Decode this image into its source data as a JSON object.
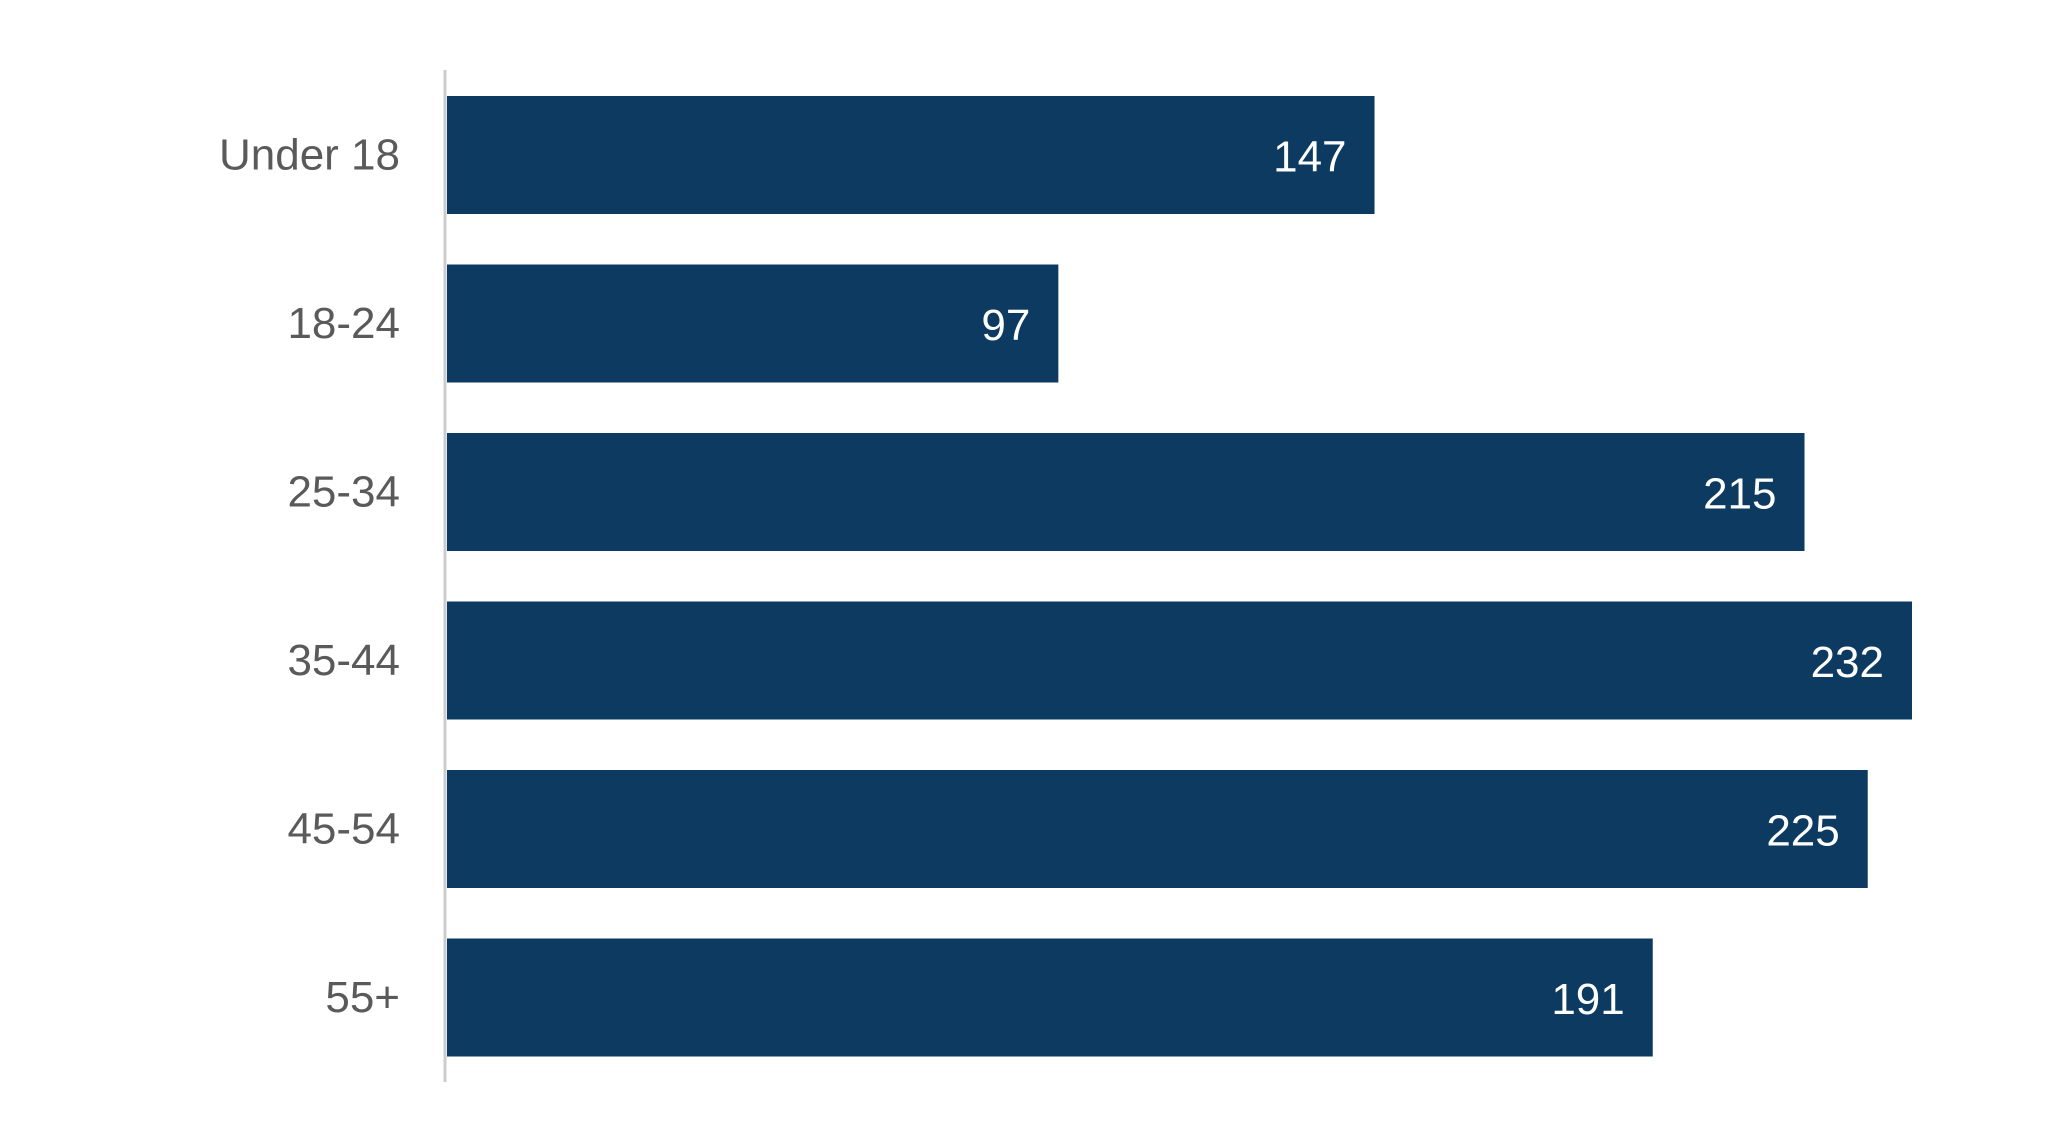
{
  "colors": {
    "bar": "#0d3a60",
    "axis_line": "#cccccc",
    "category_text": "#5a5a5a",
    "value_text": "#ffffff",
    "background": "#ffffff"
  },
  "chart_data": {
    "type": "bar",
    "orientation": "horizontal",
    "categories": [
      "Under 18",
      "18-24",
      "25-34",
      "35-44",
      "45-54",
      "55+"
    ],
    "values": [
      147,
      97,
      215,
      232,
      225,
      191
    ],
    "data_labels": [
      "147",
      "97",
      "215",
      "232",
      "225",
      "191"
    ],
    "title": "",
    "xlabel": "",
    "ylabel": "",
    "xlim": [
      0,
      232
    ],
    "grid": false,
    "legend": "none"
  }
}
